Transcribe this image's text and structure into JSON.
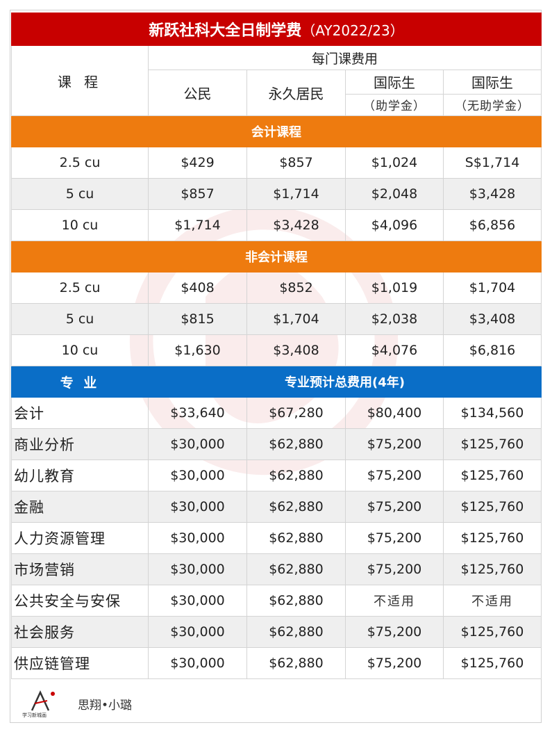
{
  "title": {
    "main": "新跃社科大全日制学费",
    "year": "（AY2022/23）"
  },
  "header": {
    "course_label": "课 程",
    "fee_group": "每门课费用",
    "col_citizen": "公民",
    "col_pr": "永久居民",
    "col_intl": "国际生",
    "col_intl_sub_aid": "（助学金）",
    "col_intl_sub_noaid": "（无助学金）"
  },
  "accounting": {
    "label": "会计课程",
    "rows": [
      [
        "2.5 cu",
        "$429",
        "$857",
        "$1,024",
        "S$1,714"
      ],
      [
        "5 cu",
        "$857",
        "$1,714",
        "$2,048",
        "$3,428"
      ],
      [
        "10 cu",
        "$1,714",
        "$3,428",
        "$4,096",
        "$6,856"
      ]
    ]
  },
  "non_accounting": {
    "label": "非会计课程",
    "rows": [
      [
        "2.5 cu",
        "$408",
        "$852",
        "$1,019",
        "$1,704"
      ],
      [
        "5 cu",
        "$815",
        "$1,704",
        "$2,038",
        "$3,408"
      ],
      [
        "10 cu",
        "$1,630",
        "$3,408",
        "$4,076",
        "$6,816"
      ]
    ]
  },
  "majors": {
    "label": "专 业",
    "total_label": "专业预计总费用(4年)",
    "rows": [
      [
        "会计",
        "$33,640",
        "$67,280",
        "$80,400",
        "$134,560"
      ],
      [
        "商业分析",
        "$30,000",
        "$62,880",
        "$75,200",
        "$125,760"
      ],
      [
        "幼儿教育",
        "$30,000",
        "$62,880",
        "$75,200",
        "$125,760"
      ],
      [
        "金融",
        "$30,000",
        "$62,880",
        "$75,200",
        "$125,760"
      ],
      [
        "人力资源管理",
        "$30,000",
        "$62,880",
        "$75,200",
        "$125,760"
      ],
      [
        "市场营销",
        "$30,000",
        "$62,880",
        "$75,200",
        "$125,760"
      ],
      [
        "公共安全与安保",
        "$30,000",
        "$62,880",
        "不适用",
        "不适用"
      ],
      [
        "社会服务",
        "$30,000",
        "$62,880",
        "$75,200",
        "$125,760"
      ],
      [
        "供应链管理",
        "$30,000",
        "$62,880",
        "$75,200",
        "$125,760"
      ]
    ]
  },
  "footer": {
    "logo_caption": "学习新城画",
    "signature": "思翔•小璐"
  },
  "colors": {
    "title": "#c80000",
    "section_orange": "#ee7b0f",
    "section_blue": "#0a6ec7",
    "alt_row": "#efefef"
  }
}
